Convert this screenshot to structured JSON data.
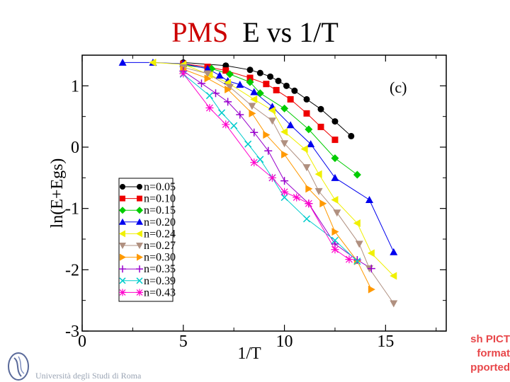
{
  "slide": {
    "title_pms": "PMS",
    "title_rest": "E vs 1/T",
    "footer": "Università degli Studi di Roma",
    "pict_placeholder": [
      "sh PICT",
      "format",
      "pported"
    ]
  },
  "chart_data": {
    "type": "line",
    "title": "PMS E vs 1/T",
    "panel_label": "(c)",
    "xlabel": "1/T",
    "ylabel": "ln(E+Egs)",
    "xlim": [
      0,
      18
    ],
    "ylim": [
      -3,
      1.5
    ],
    "xticks": [
      0,
      5,
      10,
      15
    ],
    "yticks": [
      1,
      0,
      -1,
      -2,
      -3
    ],
    "grid": false,
    "legend_position": "left-center",
    "series": [
      {
        "name": "n=0.05",
        "color": "#000000",
        "marker": "circle",
        "points": [
          [
            5,
            1.38
          ],
          [
            7.1,
            1.33
          ],
          [
            8.3,
            1.26
          ],
          [
            8.8,
            1.21
          ],
          [
            9.3,
            1.15
          ],
          [
            9.7,
            1.08
          ],
          [
            10.1,
            1.0
          ],
          [
            10.5,
            0.92
          ],
          [
            11.1,
            0.78
          ],
          [
            11.8,
            0.62
          ],
          [
            12.5,
            0.42
          ],
          [
            13.3,
            0.18
          ]
        ]
      },
      {
        "name": "n=0.10",
        "color": "#ee0000",
        "marker": "square",
        "points": [
          [
            5,
            1.36
          ],
          [
            6.2,
            1.31
          ],
          [
            7.1,
            1.25
          ],
          [
            8.3,
            1.13
          ],
          [
            9.1,
            1.03
          ],
          [
            9.6,
            0.93
          ],
          [
            10.3,
            0.78
          ],
          [
            11.1,
            0.55
          ],
          [
            11.8,
            0.33
          ],
          [
            12.5,
            0.12
          ]
        ]
      },
      {
        "name": "n=0.15",
        "color": "#00cc00",
        "marker": "diamond",
        "points": [
          [
            5,
            1.34
          ],
          [
            6.4,
            1.28
          ],
          [
            7.3,
            1.19
          ],
          [
            8.3,
            1.06
          ],
          [
            8.8,
            0.88
          ],
          [
            10,
            0.63
          ],
          [
            11.2,
            0.29
          ],
          [
            12.5,
            -0.18
          ],
          [
            13.6,
            -0.45
          ]
        ]
      },
      {
        "name": "n=0.20",
        "color": "#0000ee",
        "marker": "triangle-up",
        "points": [
          [
            2,
            1.38
          ],
          [
            3.5,
            1.38
          ],
          [
            5,
            1.36
          ],
          [
            6.2,
            1.28
          ],
          [
            6.8,
            1.17
          ],
          [
            7.2,
            1.08
          ],
          [
            7.8,
            1.02
          ],
          [
            8.5,
            0.9
          ],
          [
            9.4,
            0.66
          ],
          [
            10.3,
            0.36
          ],
          [
            11.3,
            0.05
          ],
          [
            12.5,
            -0.5
          ],
          [
            14.2,
            -0.86
          ],
          [
            15.4,
            -1.71
          ]
        ]
      },
      {
        "name": "n=0.24",
        "color": "#f0f000",
        "marker": "triangle-left",
        "points": [
          [
            3.5,
            1.38
          ],
          [
            5,
            1.35
          ],
          [
            6.3,
            1.18
          ],
          [
            7.2,
            1.05
          ],
          [
            8.5,
            0.78
          ],
          [
            9.4,
            0.6
          ],
          [
            10,
            0.25
          ],
          [
            11,
            -0.03
          ],
          [
            11.7,
            -0.44
          ],
          [
            12.5,
            -0.86
          ],
          [
            13.6,
            -1.24
          ],
          [
            14.3,
            -1.73
          ],
          [
            15.4,
            -2.1
          ]
        ]
      },
      {
        "name": "n=0.27",
        "color": "#b09080",
        "marker": "triangle-down",
        "points": [
          [
            5,
            1.3
          ],
          [
            6.2,
            1.2
          ],
          [
            7.3,
            0.98
          ],
          [
            8.4,
            0.67
          ],
          [
            9.4,
            0.43
          ],
          [
            10,
            0.06
          ],
          [
            11.1,
            -0.33
          ],
          [
            11.7,
            -0.72
          ],
          [
            12.6,
            -1.07
          ],
          [
            13.7,
            -1.58
          ],
          [
            14.2,
            -1.98
          ],
          [
            15.4,
            -2.55
          ]
        ]
      },
      {
        "name": "n=0.30",
        "color": "#ff9900",
        "marker": "triangle-right",
        "points": [
          [
            5,
            1.27
          ],
          [
            6.2,
            1.12
          ],
          [
            7.2,
            0.94
          ],
          [
            8.4,
            0.55
          ],
          [
            9.1,
            0.2
          ],
          [
            10,
            -0.12
          ],
          [
            11.2,
            -0.68
          ],
          [
            11.9,
            -0.92
          ],
          [
            12.5,
            -1.38
          ],
          [
            13.6,
            -1.86
          ],
          [
            14.3,
            -2.32
          ]
        ]
      },
      {
        "name": "n=0.35",
        "color": "#9900cc",
        "marker": "plus",
        "points": [
          [
            5,
            1.24
          ],
          [
            5.9,
            1.04
          ],
          [
            6.6,
            0.88
          ],
          [
            7.2,
            0.74
          ],
          [
            7.8,
            0.53
          ],
          [
            8.5,
            0.24
          ],
          [
            9.2,
            -0.06
          ],
          [
            10,
            -0.55
          ],
          [
            11.2,
            -0.92
          ],
          [
            12.5,
            -1.58
          ],
          [
            13.6,
            -1.84
          ],
          [
            14.3,
            -1.98
          ]
        ]
      },
      {
        "name": "n=0.39",
        "color": "#00cccc",
        "marker": "x",
        "points": [
          [
            5,
            1.19
          ],
          [
            6.3,
            0.84
          ],
          [
            6.9,
            0.56
          ],
          [
            7.5,
            0.35
          ],
          [
            8.2,
            0.05
          ],
          [
            8.8,
            -0.2
          ],
          [
            9.4,
            -0.5
          ],
          [
            10,
            -0.82
          ],
          [
            11.1,
            -1.17
          ],
          [
            12.5,
            -1.52
          ],
          [
            13.6,
            -1.86
          ]
        ]
      },
      {
        "name": "n=0.43",
        "color": "#ff00cc",
        "marker": "star",
        "points": [
          [
            5,
            1.2
          ],
          [
            6.3,
            0.64
          ],
          [
            7.1,
            0.37
          ],
          [
            8.5,
            -0.25
          ],
          [
            9.4,
            -0.5
          ],
          [
            10,
            -0.73
          ],
          [
            10.6,
            -0.82
          ],
          [
            11.2,
            -0.92
          ],
          [
            12.5,
            -1.67
          ],
          [
            13.2,
            -1.83
          ]
        ]
      }
    ]
  }
}
